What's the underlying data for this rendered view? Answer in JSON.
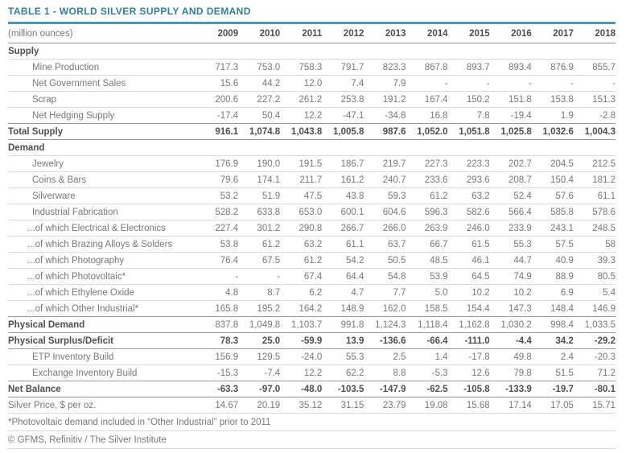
{
  "title": "TABLE 1 - WORLD SILVER SUPPLY AND DEMAND",
  "table": {
    "unit_label": "(million ounces)",
    "years": [
      "2009",
      "2010",
      "2011",
      "2012",
      "2013",
      "2014",
      "2015",
      "2016",
      "2017",
      "2018"
    ],
    "rows": [
      {
        "label": "Supply",
        "style": "section",
        "rule": "light",
        "values": []
      },
      {
        "label": "Mine Production",
        "style": "item",
        "rule": "light",
        "values": [
          "717.3",
          "753.0",
          "758.3",
          "791.7",
          "823.3",
          "867.8",
          "893.7",
          "893.4",
          "876.9",
          "855.7"
        ]
      },
      {
        "label": "Net Government Sales",
        "style": "item",
        "rule": "light",
        "values": [
          "15.6",
          "44.2",
          "12.0",
          "7.4",
          "7.9",
          "-",
          "-",
          "-",
          "-",
          "-"
        ]
      },
      {
        "label": "Scrap",
        "style": "item",
        "rule": "light",
        "values": [
          "200.6",
          "227.2",
          "261.2",
          "253.8",
          "191.2",
          "167.4",
          "150.2",
          "151.8",
          "153.8",
          "151.3"
        ]
      },
      {
        "label": "Net Hedging Supply",
        "style": "item",
        "rule": "dark",
        "values": [
          "-17.4",
          "50.4",
          "12.2",
          "-47.1",
          "-34.8",
          "16.8",
          "7.8",
          "-19.4",
          "1.9",
          "-2.8"
        ]
      },
      {
        "label": "Total Supply",
        "style": "total",
        "rule": "dark",
        "values": [
          "916.1",
          "1,074.8",
          "1,043.8",
          "1,005.8",
          "987.6",
          "1,052.0",
          "1,051.8",
          "1,025.8",
          "1,032.6",
          "1,004.3"
        ]
      },
      {
        "label": "Demand",
        "style": "section",
        "rule": "light",
        "values": []
      },
      {
        "label": "Jewelry",
        "style": "item",
        "rule": "light",
        "values": [
          "176.9",
          "190.0",
          "191.5",
          "186.7",
          "219.7",
          "227.3",
          "223.3",
          "202.7",
          "204.5",
          "212.5"
        ]
      },
      {
        "label": "Coins & Bars",
        "style": "item",
        "rule": "light",
        "values": [
          "79.6",
          "174.1",
          "211.7",
          "161.2",
          "240.7",
          "233.6",
          "293.6",
          "208.7",
          "150.4",
          "181.2"
        ]
      },
      {
        "label": "Silverware",
        "style": "item",
        "rule": "light",
        "values": [
          "53.2",
          "51.9",
          "47.5",
          "43.8",
          "59.3",
          "61.2",
          "63.2",
          "52.4",
          "57.6",
          "61.1"
        ]
      },
      {
        "label": "Industrial Fabrication",
        "style": "item",
        "rule": "light",
        "values": [
          "528.2",
          "633.8",
          "653.0",
          "600.1",
          "604.6",
          "596.3",
          "582.6",
          "566.4",
          "585.8",
          "578.6"
        ]
      },
      {
        "label": "...of which Electrical & Electronics",
        "style": "sub",
        "rule": "light",
        "values": [
          "227.4",
          "301.2",
          "290.8",
          "266.7",
          "266.0",
          "263.9",
          "246.0",
          "233.9",
          "243.1",
          "248.5"
        ]
      },
      {
        "label": "...of which Brazing Alloys & Solders",
        "style": "sub",
        "rule": "light",
        "values": [
          "53.8",
          "61.2",
          "63.2",
          "61.1",
          "63.7",
          "66.7",
          "61.5",
          "55.3",
          "57.5",
          "58"
        ]
      },
      {
        "label": "...of which Photography",
        "style": "sub",
        "rule": "light",
        "values": [
          "76.4",
          "67.5",
          "61.2",
          "54.2",
          "50.5",
          "48.5",
          "46.1",
          "44.7",
          "40.9",
          "39.3"
        ]
      },
      {
        "label": "...of which Photovoltaic*",
        "style": "sub",
        "rule": "light",
        "values": [
          "-",
          "-",
          "67.4",
          "64.4",
          "54.8",
          "53.9",
          "64.5",
          "74.9",
          "88.9",
          "80.5"
        ]
      },
      {
        "label": "...of which Ethylene Oxide",
        "style": "sub",
        "rule": "light",
        "values": [
          "4.8",
          "8.7",
          "6.2",
          "4.7",
          "7.7",
          "5.0",
          "10.2",
          "10.2",
          "6.9",
          "5.4"
        ]
      },
      {
        "label": "...of which Other Industrial*",
        "style": "sub",
        "rule": "dark",
        "values": [
          "165.8",
          "195.2",
          "164.2",
          "148.9",
          "162.0",
          "158.5",
          "154.4",
          "147.3",
          "148.4",
          "146.9"
        ]
      },
      {
        "label": "Physical Demand",
        "style": "demand-total",
        "rule": "dark",
        "values": [
          "837.8",
          "1,049.8",
          "1,103.7",
          "991.8",
          "1,124.3",
          "1,118.4",
          "1,162.8",
          "1,030.2",
          "998.4",
          "1,033.5"
        ]
      },
      {
        "label": "Physical Surplus/Deficit",
        "style": "total",
        "rule": "dark",
        "values": [
          "78.3",
          "25.0",
          "-59.9",
          "13.9",
          "-136.6",
          "-66.4",
          "-111.0",
          "-4.4",
          "34.2",
          "-29.2"
        ]
      },
      {
        "label": "ETP Inventory Build",
        "style": "item",
        "rule": "light",
        "values": [
          "156.9",
          "129.5",
          "-24.0",
          "55.3",
          "2.5",
          "1.4",
          "-17.8",
          "49.8",
          "2.4",
          "-20.3"
        ]
      },
      {
        "label": "Exchange Inventory Build",
        "style": "item",
        "rule": "dark",
        "values": [
          "-15.3",
          "-7.4",
          "12.2",
          "62.2",
          "8.8",
          "-5.3",
          "12.6",
          "79.8",
          "51.5",
          "71.2"
        ]
      },
      {
        "label": "Net Balance",
        "style": "total",
        "rule": "dark",
        "values": [
          "-63.3",
          "-97.0",
          "-48.0",
          "-103.5",
          "-147.9",
          "-62.5",
          "-105.8",
          "-133.9",
          "-19.7",
          "-80.1"
        ]
      },
      {
        "label": "Silver Price, $ per oz.",
        "style": "plain",
        "rule": "light",
        "values": [
          "14.67",
          "20.19",
          "35.12",
          "31.15",
          "23.79",
          "19.08",
          "15.68",
          "17.14",
          "17.05",
          "15.71"
        ]
      }
    ],
    "footnote": "*Photovoltaic demand included in “Other Industrial” prior to 2011",
    "copyright": "© GFMS, Refinitiv / The Silver Institute"
  },
  "colors": {
    "title_teal": "#2e7f9f",
    "rule_teal": "#4a97b6",
    "dark_text": "#4d4e50",
    "gray_text": "#77787b",
    "light_line": "#dadbdc",
    "dark_line": "#97999c"
  }
}
